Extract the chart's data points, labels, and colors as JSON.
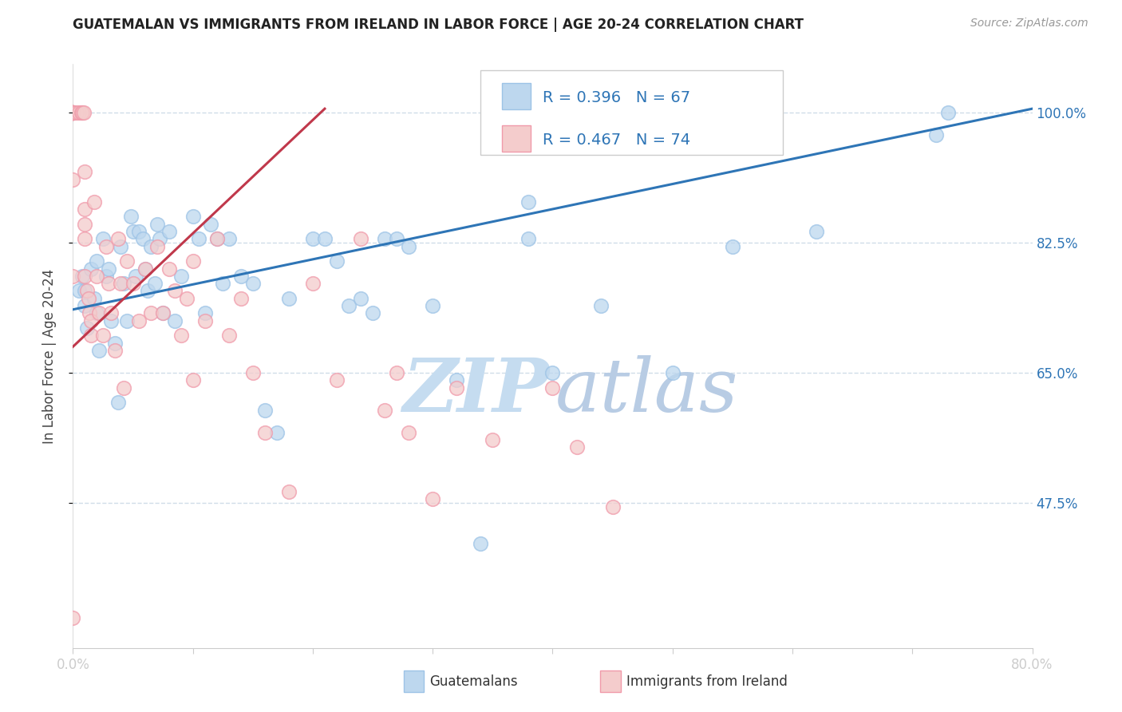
{
  "title": "GUATEMALAN VS IMMIGRANTS FROM IRELAND IN LABOR FORCE | AGE 20-24 CORRELATION CHART",
  "source": "Source: ZipAtlas.com",
  "ylabel": "In Labor Force | Age 20-24",
  "legend_blue_r": "R = 0.396",
  "legend_blue_n": "N = 67",
  "legend_pink_r": "R = 0.467",
  "legend_pink_n": "N = 74",
  "legend_label_blue": "Guatemalans",
  "legend_label_pink": "Immigrants from Ireland",
  "xmin": 0.0,
  "xmax": 0.8,
  "ymin": 0.28,
  "ymax": 1.065,
  "yticks": [
    0.475,
    0.65,
    0.825,
    1.0
  ],
  "ytick_labels": [
    "47.5%",
    "65.0%",
    "82.5%",
    "100.0%"
  ],
  "xticks": [
    0.0,
    0.1,
    0.2,
    0.3,
    0.4,
    0.5,
    0.6,
    0.7,
    0.8
  ],
  "xtick_labels": [
    "0.0%",
    "",
    "",
    "",
    "",
    "",
    "",
    "",
    "80.0%"
  ],
  "color_blue_fill": "#BDD7EE",
  "color_blue_edge": "#9DC3E6",
  "color_pink_fill": "#F4CCCC",
  "color_pink_edge": "#F09AAA",
  "color_trendline_blue": "#2E75B6",
  "color_trendline_pink": "#C0384B",
  "watermark_zip_color": "#C5DCF0",
  "watermark_atlas_color": "#B8CCE4",
  "axis_label_color": "#2E75B6",
  "grid_color": "#D0DDE8",
  "title_color": "#222222",
  "source_color": "#999999",
  "ylabel_color": "#444444",
  "blue_x": [
    0.005,
    0.008,
    0.01,
    0.01,
    0.012,
    0.015,
    0.018,
    0.02,
    0.02,
    0.022,
    0.025,
    0.028,
    0.03,
    0.032,
    0.035,
    0.038,
    0.04,
    0.042,
    0.045,
    0.048,
    0.05,
    0.052,
    0.055,
    0.058,
    0.06,
    0.062,
    0.065,
    0.068,
    0.07,
    0.072,
    0.075,
    0.08,
    0.085,
    0.09,
    0.1,
    0.105,
    0.11,
    0.115,
    0.12,
    0.125,
    0.13,
    0.14,
    0.15,
    0.16,
    0.17,
    0.18,
    0.2,
    0.21,
    0.22,
    0.23,
    0.24,
    0.25,
    0.26,
    0.27,
    0.28,
    0.3,
    0.32,
    0.34,
    0.38,
    0.4,
    0.44,
    0.5,
    0.55,
    0.62,
    0.72,
    0.73,
    0.38
  ],
  "blue_y": [
    0.76,
    0.78,
    0.76,
    0.74,
    0.71,
    0.79,
    0.75,
    0.8,
    0.73,
    0.68,
    0.83,
    0.78,
    0.79,
    0.72,
    0.69,
    0.61,
    0.82,
    0.77,
    0.72,
    0.86,
    0.84,
    0.78,
    0.84,
    0.83,
    0.79,
    0.76,
    0.82,
    0.77,
    0.85,
    0.83,
    0.73,
    0.84,
    0.72,
    0.78,
    0.86,
    0.83,
    0.73,
    0.85,
    0.83,
    0.77,
    0.83,
    0.78,
    0.77,
    0.6,
    0.57,
    0.75,
    0.83,
    0.83,
    0.8,
    0.74,
    0.75,
    0.73,
    0.83,
    0.83,
    0.82,
    0.74,
    0.64,
    0.42,
    0.83,
    0.65,
    0.74,
    0.65,
    0.82,
    0.84,
    0.97,
    1.0,
    0.88
  ],
  "pink_x": [
    0.0,
    0.0,
    0.0,
    0.0,
    0.0,
    0.0,
    0.0,
    0.0,
    0.0,
    0.0,
    0.0,
    0.0,
    0.0,
    0.0,
    0.0,
    0.0,
    0.003,
    0.005,
    0.007,
    0.008,
    0.009,
    0.01,
    0.01,
    0.01,
    0.01,
    0.01,
    0.012,
    0.013,
    0.014,
    0.015,
    0.015,
    0.018,
    0.02,
    0.022,
    0.025,
    0.028,
    0.03,
    0.032,
    0.035,
    0.038,
    0.04,
    0.042,
    0.045,
    0.05,
    0.055,
    0.06,
    0.065,
    0.07,
    0.075,
    0.08,
    0.085,
    0.09,
    0.095,
    0.1,
    0.1,
    0.11,
    0.12,
    0.13,
    0.14,
    0.15,
    0.16,
    0.18,
    0.2,
    0.22,
    0.24,
    0.26,
    0.27,
    0.28,
    0.3,
    0.32,
    0.35,
    0.4,
    0.42,
    0.45
  ],
  "pink_y": [
    1.0,
    1.0,
    1.0,
    1.0,
    1.0,
    1.0,
    1.0,
    1.0,
    1.0,
    1.0,
    1.0,
    1.0,
    1.0,
    0.91,
    0.78,
    0.32,
    1.0,
    1.0,
    1.0,
    1.0,
    1.0,
    0.92,
    0.87,
    0.85,
    0.83,
    0.78,
    0.76,
    0.75,
    0.73,
    0.72,
    0.7,
    0.88,
    0.78,
    0.73,
    0.7,
    0.82,
    0.77,
    0.73,
    0.68,
    0.83,
    0.77,
    0.63,
    0.8,
    0.77,
    0.72,
    0.79,
    0.73,
    0.82,
    0.73,
    0.79,
    0.76,
    0.7,
    0.75,
    0.8,
    0.64,
    0.72,
    0.83,
    0.7,
    0.75,
    0.65,
    0.57,
    0.49,
    0.77,
    0.64,
    0.83,
    0.6,
    0.65,
    0.57,
    0.48,
    0.63,
    0.56,
    0.63,
    0.55,
    0.47
  ],
  "blue_trend_x0": 0.0,
  "blue_trend_y0": 0.735,
  "blue_trend_x1": 0.8,
  "blue_trend_y1": 1.005,
  "pink_trend_x0": 0.0,
  "pink_trend_y0": 0.685,
  "pink_trend_x1": 0.21,
  "pink_trend_y1": 1.005
}
